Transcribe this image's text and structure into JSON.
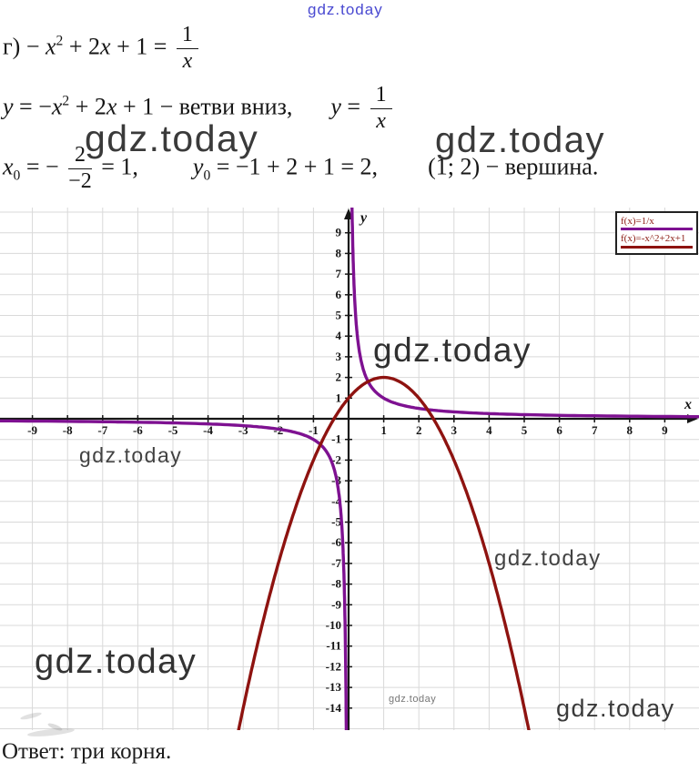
{
  "watermarks": {
    "brand": "gdz.today"
  },
  "math": {
    "line1": {
      "t1": "г) − ",
      "v1": "x",
      "e1": "2",
      "t2": " + 2",
      "v2": "x",
      "t3": " + 1 = ",
      "num": "1",
      "den": "x"
    },
    "line2": {
      "v0": "y",
      "t1": " = −",
      "v1": "x",
      "e1": "2",
      "t2": " + 2",
      "v2": "x",
      "t3": " + 1 − ветви вниз,",
      "v4": "y",
      "t4": " = ",
      "num": "1",
      "den": "x"
    },
    "line3": {
      "v0": "x",
      "s0": "0",
      "t0": " = − ",
      "num": "2",
      "den": "−2",
      "t1": " = 1,",
      "v1": "y",
      "s1": "0",
      "t2": " = −1 + 2 + 1 = 2,",
      "t3": "(1; 2) − вершина."
    }
  },
  "chart_data": {
    "type": "line",
    "title": "",
    "x_label": "x",
    "y_label": "y",
    "x_range": [
      -9.9,
      9.9
    ],
    "y_range": [
      -15,
      10.2
    ],
    "grid": true,
    "x_ticks": [
      -9,
      -8,
      -7,
      -6,
      -5,
      -4,
      -3,
      -2,
      -1,
      1,
      2,
      3,
      4,
      5,
      6,
      7,
      8,
      9
    ],
    "y_ticks": [
      9,
      8,
      7,
      6,
      5,
      4,
      3,
      2,
      1,
      -1,
      -2,
      -3,
      -4,
      -5,
      -6,
      -7,
      -8,
      -9,
      -10,
      -11,
      -12,
      -13,
      -14
    ],
    "legend_position": "top-right",
    "series": [
      {
        "name": "f(x)=1/x",
        "fn": "reciprocal",
        "color": "#7e1191"
      },
      {
        "name": "f(x)=-x^2+2x+1",
        "fn": "quadratic",
        "a": -1,
        "b": 2,
        "c": 1,
        "color": "#8e1310"
      }
    ],
    "key_points": {
      "vertex": [
        1,
        2
      ],
      "intersections_x": [
        -0.8,
        0.55,
        2.3
      ],
      "roots_count": 3
    }
  },
  "answer": {
    "text": "Ответ: три корня."
  }
}
